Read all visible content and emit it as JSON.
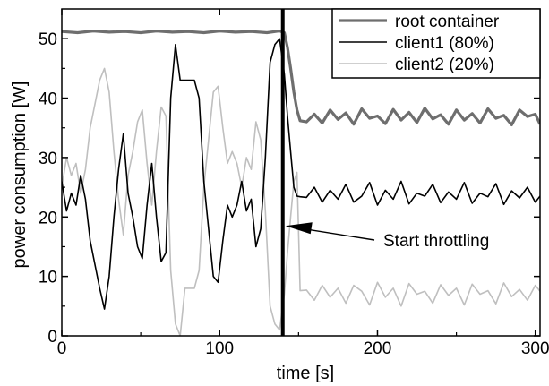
{
  "chart_data": {
    "type": "line",
    "title": "",
    "xlabel": "time [s]",
    "ylabel": "power consumption [W]",
    "xlim": [
      0,
      303
    ],
    "ylim": [
      0,
      55
    ],
    "xticks": [
      0,
      100,
      200,
      300
    ],
    "yticks": [
      0,
      10,
      20,
      30,
      40,
      50
    ],
    "grid": false,
    "legend": "top-right",
    "series": [
      {
        "name": "root container",
        "color": "#6e6e6e",
        "x": [
          0,
          10,
          20,
          30,
          40,
          50,
          60,
          70,
          80,
          90,
          100,
          110,
          120,
          130,
          138,
          141,
          143,
          145,
          147,
          149,
          151,
          155,
          160,
          165,
          170,
          175,
          180,
          185,
          190,
          195,
          200,
          205,
          210,
          215,
          220,
          225,
          230,
          235,
          240,
          245,
          250,
          255,
          260,
          265,
          270,
          275,
          280,
          285,
          290,
          295,
          300,
          303
        ],
        "y": [
          51.2,
          51.0,
          51.3,
          51.1,
          51.2,
          51.0,
          51.3,
          51.1,
          51.2,
          51.0,
          51.3,
          51.1,
          51.2,
          51.0,
          51.3,
          51.0,
          48.5,
          45.0,
          41.0,
          38.0,
          36.2,
          36.0,
          37.3,
          35.8,
          38.0,
          36.4,
          37.5,
          35.6,
          38.2,
          36.6,
          37.0,
          35.7,
          38.1,
          36.3,
          37.6,
          35.9,
          38.3,
          36.5,
          37.2,
          35.6,
          38.0,
          36.3,
          37.4,
          35.8,
          38.2,
          36.6,
          37.1,
          35.5,
          38.0,
          36.9,
          37.3,
          35.6
        ]
      },
      {
        "name": "client1 (80%)",
        "color": "#000000",
        "x": [
          0,
          3,
          6,
          9,
          12,
          15,
          18,
          21,
          24,
          27,
          30,
          33,
          36,
          39,
          42,
          45,
          48,
          51,
          54,
          57,
          60,
          63,
          66,
          69,
          72,
          75,
          78,
          81,
          84,
          87,
          90,
          93,
          96,
          99,
          102,
          105,
          108,
          111,
          114,
          117,
          120,
          123,
          126,
          129,
          132,
          135,
          138,
          141,
          143,
          145,
          147,
          149,
          151,
          155,
          160,
          165,
          170,
          175,
          180,
          185,
          190,
          195,
          200,
          205,
          210,
          215,
          220,
          225,
          230,
          235,
          240,
          245,
          250,
          255,
          260,
          265,
          270,
          275,
          280,
          285,
          290,
          295,
          300,
          303
        ],
        "y": [
          26,
          21,
          24,
          22,
          27,
          23,
          16,
          12,
          8,
          4.5,
          10,
          20,
          28,
          34,
          24,
          20,
          15,
          13,
          22,
          29,
          20,
          12.5,
          14,
          40,
          49,
          43,
          43,
          43,
          43,
          40,
          26,
          18,
          10,
          9,
          16,
          22,
          20,
          22,
          26,
          21,
          23,
          15,
          18,
          30,
          46,
          49,
          50,
          44,
          37,
          31,
          25,
          23.5,
          23.4,
          23.3,
          25,
          22.5,
          24.5,
          23,
          25.5,
          22.5,
          23.5,
          25.8,
          22,
          24.5,
          23,
          26,
          22.2,
          24,
          23.5,
          25.5,
          22.4,
          24.2,
          23,
          25.8,
          22.3,
          24,
          23.4,
          25.6,
          22.1,
          24.4,
          23.2,
          25,
          22.5,
          23.5
        ]
      },
      {
        "name": "client2 (20%)",
        "color": "#bfbfbf",
        "x": [
          0,
          3,
          6,
          9,
          12,
          15,
          18,
          21,
          24,
          27,
          30,
          33,
          36,
          39,
          42,
          45,
          48,
          51,
          54,
          57,
          60,
          63,
          66,
          69,
          72,
          75,
          78,
          81,
          84,
          87,
          90,
          93,
          96,
          99,
          102,
          105,
          108,
          111,
          114,
          117,
          120,
          123,
          126,
          129,
          132,
          135,
          138,
          141,
          143,
          145,
          147,
          149,
          151,
          155,
          160,
          165,
          170,
          175,
          180,
          185,
          190,
          195,
          200,
          205,
          210,
          215,
          220,
          225,
          230,
          235,
          240,
          245,
          250,
          255,
          260,
          265,
          270,
          275,
          280,
          285,
          290,
          295,
          300,
          303
        ],
        "y": [
          25,
          30,
          27,
          29,
          24,
          28,
          35,
          39,
          43,
          45,
          41,
          31,
          23,
          17,
          27,
          31,
          36,
          38,
          29,
          22,
          31,
          38.5,
          37,
          11,
          2,
          0,
          8,
          8,
          8,
          11,
          25,
          33,
          41,
          42,
          35,
          29,
          31,
          29,
          25,
          30,
          28,
          36,
          33,
          21,
          5,
          2,
          1,
          7,
          14,
          20,
          26,
          27.5,
          7.6,
          7.7,
          6,
          8.5,
          6.5,
          8,
          5.5,
          8.5,
          7.5,
          5.2,
          9,
          6.5,
          8,
          5,
          8.8,
          7,
          7.5,
          5.5,
          8.6,
          6.8,
          8,
          5.2,
          8.7,
          7,
          7.6,
          5.4,
          8.9,
          6.6,
          7.8,
          6,
          8.5,
          7.5
        ]
      }
    ],
    "annotations": [
      {
        "text": "Start throttling",
        "x": 140,
        "y": 18.5
      }
    ],
    "vline": 140
  }
}
